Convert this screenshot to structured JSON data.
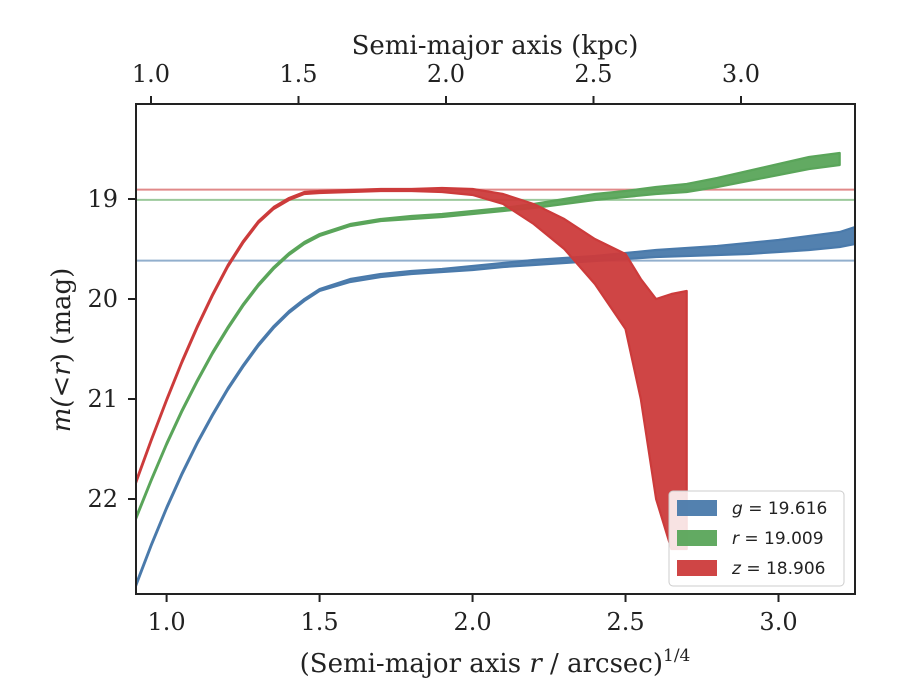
{
  "chart_data": {
    "type": "area",
    "top_axis": {
      "label": "Semi-major axis (kpc)",
      "ticks": [
        1.0,
        1.5,
        2.0,
        2.5,
        3.0
      ],
      "tick_labels": [
        "1.0",
        "1.5",
        "2.0",
        "2.5",
        "3.0"
      ]
    },
    "xlabel_parts": {
      "pre": "(Semi-major axis ",
      "var": "r",
      "post": " / arcsec)",
      "sup": "1/4"
    },
    "ylabel_parts": {
      "pre": "m(<",
      "var": "r",
      "post": ") (mag)"
    },
    "xlim": [
      0.9,
      3.25
    ],
    "ylim": [
      22.95,
      18.05
    ],
    "y_inverted": true,
    "x_ticks": [
      1.0,
      1.5,
      2.0,
      2.5,
      3.0
    ],
    "x_tick_labels": [
      "1.0",
      "1.5",
      "2.0",
      "2.5",
      "3.0"
    ],
    "y_ticks": [
      19,
      20,
      21,
      22
    ],
    "y_tick_labels": [
      "19",
      "20",
      "21",
      "22"
    ],
    "grid": false,
    "legend_position": "lower-right",
    "series": [
      {
        "name": "g = 19.616",
        "legend_var": "g",
        "legend_value": "= 19.616",
        "color": "#4a7aab",
        "asymptote": 19.616,
        "x": [
          0.9,
          0.95,
          1.0,
          1.05,
          1.1,
          1.15,
          1.2,
          1.25,
          1.3,
          1.35,
          1.4,
          1.45,
          1.5,
          1.6,
          1.7,
          1.8,
          1.9,
          2.0,
          2.1,
          2.2,
          2.3,
          2.4,
          2.5,
          2.6,
          2.7,
          2.8,
          2.9,
          3.0,
          3.1,
          3.2,
          3.25
        ],
        "y_upper": [
          22.85,
          22.45,
          22.08,
          21.74,
          21.43,
          21.15,
          20.89,
          20.66,
          20.45,
          20.27,
          20.12,
          20.0,
          19.9,
          19.8,
          19.75,
          19.72,
          19.7,
          19.67,
          19.64,
          19.61,
          19.59,
          19.57,
          19.54,
          19.51,
          19.49,
          19.47,
          19.44,
          19.41,
          19.37,
          19.33,
          19.28
        ],
        "y_lower": [
          22.87,
          22.47,
          22.1,
          21.76,
          21.45,
          21.17,
          20.91,
          20.68,
          20.47,
          20.29,
          20.14,
          20.02,
          19.92,
          19.83,
          19.78,
          19.75,
          19.73,
          19.71,
          19.68,
          19.66,
          19.64,
          19.62,
          19.6,
          19.58,
          19.57,
          19.56,
          19.55,
          19.53,
          19.51,
          19.48,
          19.45
        ]
      },
      {
        "name": "r = 19.009",
        "legend_var": "r",
        "legend_value": "= 19.009",
        "color": "#5aa55a",
        "asymptote": 19.009,
        "x": [
          0.9,
          0.95,
          1.0,
          1.05,
          1.1,
          1.15,
          1.2,
          1.25,
          1.3,
          1.35,
          1.4,
          1.45,
          1.5,
          1.6,
          1.7,
          1.8,
          1.9,
          2.0,
          2.1,
          2.2,
          2.3,
          2.4,
          2.5,
          2.6,
          2.7,
          2.8,
          2.9,
          3.0,
          3.1,
          3.2
        ],
        "y_upper": [
          22.18,
          21.8,
          21.44,
          21.11,
          20.81,
          20.53,
          20.28,
          20.05,
          19.85,
          19.68,
          19.54,
          19.43,
          19.35,
          19.25,
          19.2,
          19.17,
          19.15,
          19.12,
          19.09,
          19.05,
          19.0,
          18.95,
          18.92,
          18.88,
          18.85,
          18.79,
          18.72,
          18.65,
          18.58,
          18.54
        ],
        "y_lower": [
          22.2,
          21.82,
          21.46,
          21.13,
          20.83,
          20.55,
          20.3,
          20.07,
          19.87,
          19.7,
          19.56,
          19.45,
          19.37,
          19.27,
          19.22,
          19.2,
          19.18,
          19.15,
          19.12,
          19.09,
          19.05,
          19.01,
          18.98,
          18.95,
          18.93,
          18.88,
          18.82,
          18.76,
          18.7,
          18.66
        ]
      },
      {
        "name": "z = 18.906",
        "legend_var": "z",
        "legend_value": "= 18.906",
        "color": "#cc3b3b",
        "asymptote": 18.906,
        "x": [
          0.9,
          0.95,
          1.0,
          1.05,
          1.1,
          1.15,
          1.2,
          1.25,
          1.3,
          1.35,
          1.4,
          1.45,
          1.5,
          1.6,
          1.7,
          1.8,
          1.9,
          2.0,
          2.1,
          2.2,
          2.3,
          2.4,
          2.5,
          2.55,
          2.6,
          2.65,
          2.7
        ],
        "y_upper": [
          21.82,
          21.4,
          21.0,
          20.62,
          20.27,
          19.95,
          19.66,
          19.42,
          19.22,
          19.08,
          18.99,
          18.93,
          18.92,
          18.91,
          18.9,
          18.9,
          18.89,
          18.9,
          18.95,
          19.05,
          19.2,
          19.4,
          19.55,
          19.8,
          20.0,
          19.95,
          19.92
        ],
        "y_lower": [
          21.84,
          21.42,
          21.02,
          20.64,
          20.29,
          19.97,
          19.68,
          19.44,
          19.24,
          19.1,
          19.01,
          18.95,
          18.94,
          18.93,
          18.92,
          18.92,
          18.93,
          18.96,
          19.05,
          19.25,
          19.5,
          19.85,
          20.3,
          21.0,
          22.0,
          22.5,
          22.5
        ]
      }
    ]
  }
}
